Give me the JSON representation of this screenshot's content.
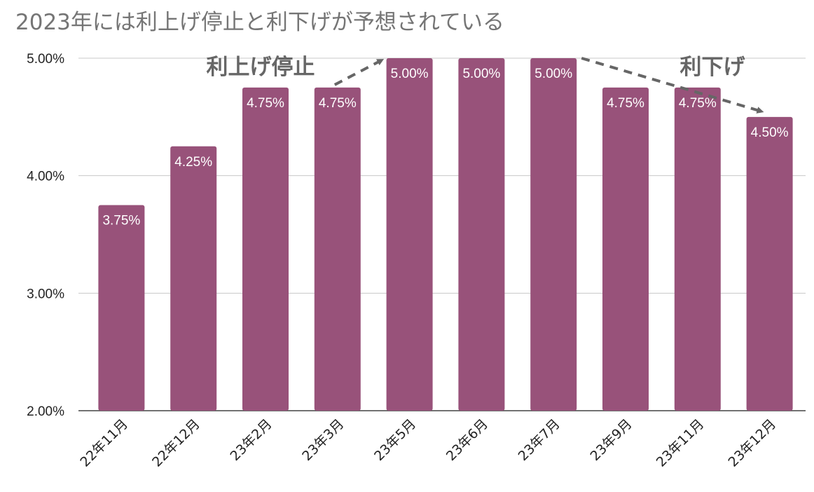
{
  "chart_data": {
    "type": "bar",
    "title": "2023年には利上げ停止と利下げが予想されている",
    "xlabel": "",
    "ylabel": "",
    "categories": [
      "22年11月",
      "22年12月",
      "23年2月",
      "23年3月",
      "23年5月",
      "23年6月",
      "23年7月",
      "23年9月",
      "23年11月",
      "23年12月"
    ],
    "values": [
      3.75,
      4.25,
      4.75,
      4.75,
      5.0,
      5.0,
      5.0,
      4.75,
      4.75,
      4.5
    ],
    "data_labels": [
      "3.75%",
      "4.25%",
      "4.75%",
      "4.75%",
      "5.00%",
      "5.00%",
      "5.00%",
      "4.75%",
      "4.75%",
      "4.50%"
    ],
    "ylim": [
      2.0,
      5.0
    ],
    "y_ticks": [
      2.0,
      3.0,
      4.0,
      5.0
    ],
    "y_tick_labels": [
      "2.00%",
      "3.00%",
      "4.00%",
      "5.00%"
    ],
    "grid": true,
    "legend": "none",
    "bar_color": "#98527a",
    "annotations": [
      {
        "text": "利上げ停止",
        "arrow_from": {
          "category": "23年3月",
          "value": 4.75
        },
        "arrow_to": {
          "category": "23年5月",
          "value": 5.0
        }
      },
      {
        "text": "利下げ",
        "arrow_from": {
          "category": "23年7月",
          "value": 5.0
        },
        "arrow_to": {
          "category": "23年12月",
          "value": 4.5
        }
      }
    ]
  }
}
